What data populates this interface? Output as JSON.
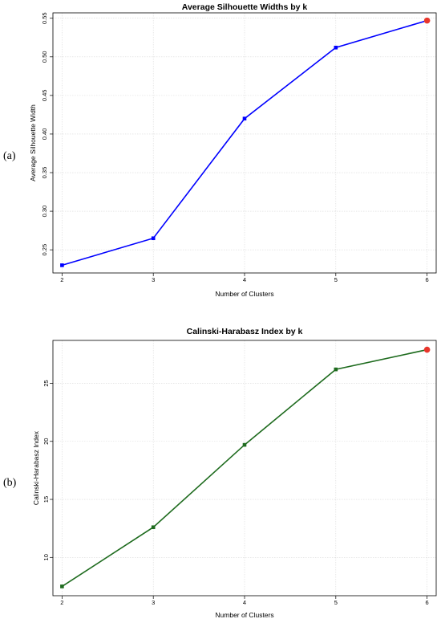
{
  "chart_data": [
    {
      "type": "line",
      "panel_label": "(a)",
      "title": "Average Silhouette Widths by k",
      "xlabel": "Number of Clusters",
      "ylabel": "Average Silhouette Width",
      "x": [
        2,
        3,
        4,
        5,
        6
      ],
      "series": [
        {
          "values": [
            0.23,
            0.265,
            0.42,
            0.512,
            0.547
          ],
          "color": "#0000ff"
        }
      ],
      "highlight": {
        "x": 6,
        "y": 0.547,
        "color": "#e8352b"
      },
      "xlim": [
        1.9,
        6.1
      ],
      "ylim": [
        0.22,
        0.557
      ],
      "xticks": [
        "2",
        "3",
        "4",
        "5",
        "6"
      ],
      "yticks": [
        "0.25",
        "0.30",
        "0.35",
        "0.40",
        "0.45",
        "0.50",
        "0.55"
      ],
      "ytick_values": [
        0.25,
        0.3,
        0.35,
        0.4,
        0.45,
        0.5,
        0.55
      ],
      "grid": true
    },
    {
      "type": "line",
      "panel_label": "(b)",
      "title": "Calinski-Harabasz Index by k",
      "xlabel": "Number of Clusters",
      "ylabel": "Calinski-Harabasz Index",
      "x": [
        2,
        3,
        4,
        5,
        6
      ],
      "series": [
        {
          "values": [
            7.5,
            12.6,
            19.7,
            26.2,
            27.9
          ],
          "color": "#1e6b1e"
        }
      ],
      "highlight": {
        "x": 6,
        "y": 27.9,
        "color": "#e8352b"
      },
      "xlim": [
        1.9,
        6.1
      ],
      "ylim": [
        6.7,
        28.7
      ],
      "xticks": [
        "2",
        "3",
        "4",
        "5",
        "6"
      ],
      "yticks": [
        "10",
        "15",
        "20",
        "25"
      ],
      "ytick_values": [
        10,
        15,
        20,
        25
      ],
      "grid": true
    }
  ]
}
